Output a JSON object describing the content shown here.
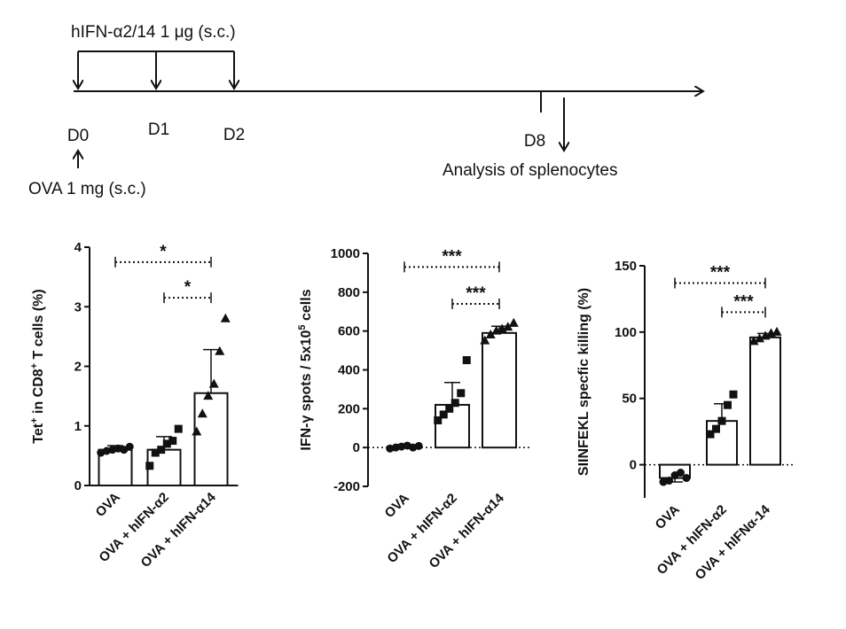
{
  "timeline": {
    "treatment_label": "hIFN-α2/14  1 μg (s.c.)",
    "days": [
      "D0",
      "D1",
      "D2"
    ],
    "d8_label": "D8",
    "analysis_label": "Analysis of splenocytes",
    "ova_label": "OVA 1 mg (s.c.)"
  },
  "chart_data": [
    {
      "type": "bar",
      "categories": [
        "OVA",
        "OVA + hIFN-α2",
        "OVA + hIFN-α14"
      ],
      "ylabel_parts": [
        "Tet",
        "+",
        " in CD8",
        "+",
        " T cells (%)"
      ],
      "ylim": [
        0,
        4
      ],
      "yticks": [
        0,
        1,
        2,
        3,
        4
      ],
      "means": [
        0.6,
        0.6,
        1.55
      ],
      "errors": [
        0.07,
        0.22,
        0.73
      ],
      "markers": [
        "circle",
        "square",
        "triangle"
      ],
      "points": [
        [
          0.55,
          0.58,
          0.6,
          0.62,
          0.6,
          0.65
        ],
        [
          0.33,
          0.55,
          0.6,
          0.7,
          0.75,
          0.95
        ],
        [
          0.9,
          1.2,
          1.5,
          1.7,
          2.25,
          2.8
        ]
      ],
      "zero_line": false,
      "significance": [
        {
          "from": 0,
          "to": 2,
          "label": "*",
          "level": 3.75
        },
        {
          "from": 1,
          "to": 2,
          "label": "*",
          "level": 3.15
        }
      ]
    },
    {
      "type": "bar",
      "categories": [
        "OVA",
        "OVA + hIFN-α2",
        "OVA + hIFN-α14"
      ],
      "ylabel_parts": [
        "IFN-γ spots / 5x10",
        "5",
        " cells"
      ],
      "ylim": [
        -200,
        1000
      ],
      "yticks": [
        -200,
        0,
        200,
        400,
        600,
        800,
        1000
      ],
      "means": [
        5,
        220,
        590
      ],
      "errors": [
        10,
        115,
        35
      ],
      "markers": [
        "circle",
        "square",
        "triangle"
      ],
      "points": [
        [
          -5,
          0,
          5,
          10,
          0,
          8
        ],
        [
          140,
          170,
          200,
          230,
          280,
          450
        ],
        [
          550,
          580,
          600,
          610,
          620,
          640
        ]
      ],
      "zero_line": true,
      "significance": [
        {
          "from": 0,
          "to": 2,
          "label": "***",
          "level": 930
        },
        {
          "from": 1,
          "to": 2,
          "label": "***",
          "level": 740
        }
      ]
    },
    {
      "type": "bar",
      "categories": [
        "OVA",
        "OVA + hIFN-α2",
        "OVA + hIFNα-14"
      ],
      "ylabel_parts": [
        "SIINFEKL specfic killing (%)"
      ],
      "ylim": [
        -25,
        150
      ],
      "yticks": [
        0,
        50,
        100,
        150
      ],
      "means": [
        -10,
        33,
        96
      ],
      "errors": [
        3,
        13,
        3
      ],
      "markers": [
        "circle",
        "square",
        "triangle"
      ],
      "points": [
        [
          -13,
          -12,
          -8,
          -6,
          -10
        ],
        [
          23,
          27,
          33,
          45,
          53
        ],
        [
          93,
          95,
          97,
          99,
          100
        ]
      ],
      "zero_line": true,
      "significance": [
        {
          "from": 0,
          "to": 2,
          "label": "***",
          "level": 137
        },
        {
          "from": 1,
          "to": 2,
          "label": "***",
          "level": 115
        }
      ]
    }
  ]
}
